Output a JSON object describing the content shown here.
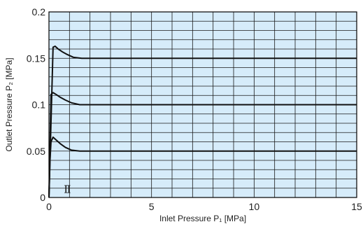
{
  "chart_data": {
    "type": "line",
    "title": "",
    "xlabel": "Inlet Pressure P₁ [MPa]",
    "ylabel": "Outlet Pressure P₂ [MPa]",
    "xlim": [
      0,
      15
    ],
    "ylim": [
      0,
      0.2
    ],
    "x_ticks": [
      0,
      5,
      10,
      15
    ],
    "y_ticks": [
      0,
      0.05,
      0.1,
      0.15,
      0.2
    ],
    "x_tick_labels": [
      "0",
      "5",
      "10",
      "15"
    ],
    "y_tick_labels": [
      "0",
      "0.05",
      "0.1",
      "0.15",
      "0.2"
    ],
    "grid": true,
    "grid_x_step": 1,
    "grid_y_step": 0.01,
    "plot_background": "#d6ecfa",
    "grid_color": "#1a1a1a",
    "line_color": "#111111",
    "annotation": "Ⅱ",
    "series": [
      {
        "x": [
          0,
          0.05,
          0.1,
          0.2,
          0.35,
          0.55,
          0.8,
          1.1,
          1.5,
          15
        ],
        "y": [
          0,
          0.04,
          0.06,
          0.065,
          0.062,
          0.058,
          0.054,
          0.051,
          0.05,
          0.05
        ]
      },
      {
        "x": [
          0,
          0.1,
          0.2,
          0.35,
          0.55,
          0.8,
          1.1,
          1.5,
          15
        ],
        "y": [
          0,
          0.111,
          0.113,
          0.111,
          0.108,
          0.105,
          0.102,
          0.1,
          0.1
        ]
      },
      {
        "x": [
          0,
          0.2,
          0.3,
          0.45,
          0.65,
          0.9,
          1.2,
          1.6,
          15
        ],
        "y": [
          0,
          0.162,
          0.163,
          0.16,
          0.157,
          0.154,
          0.151,
          0.15,
          0.15
        ]
      }
    ]
  }
}
